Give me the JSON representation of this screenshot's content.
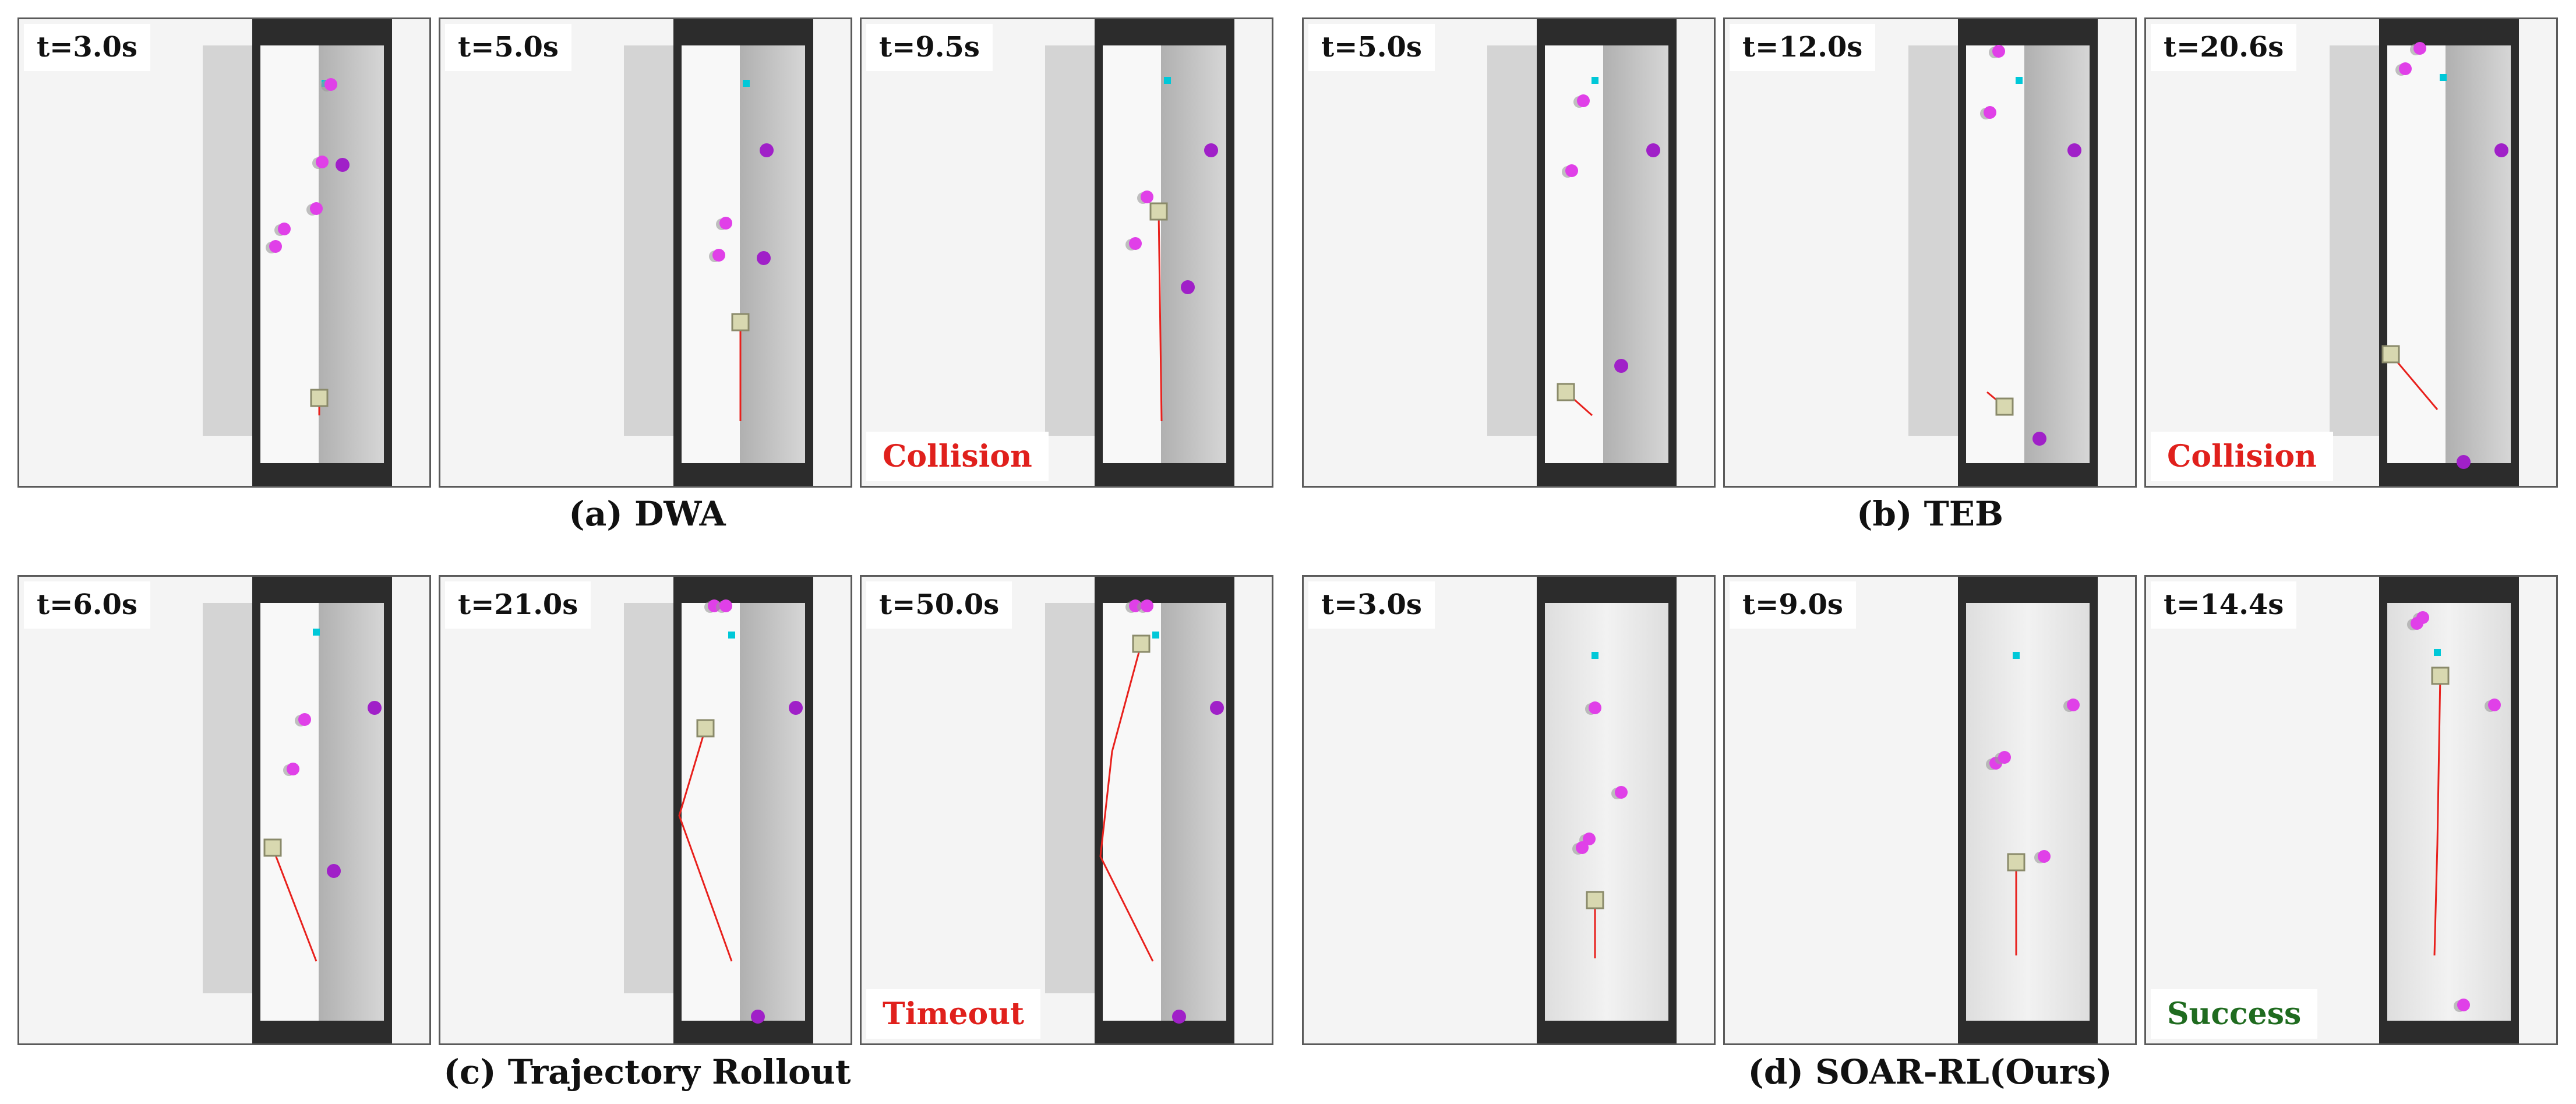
{
  "groups": [
    {
      "caption": "(a) DWA",
      "panels": [
        {
          "time": "t=3.0s",
          "status": "",
          "status_color": ""
        },
        {
          "time": "t=5.0s",
          "status": "",
          "status_color": ""
        },
        {
          "time": "t=9.5s",
          "status": "Collision",
          "status_color": "#e0201c"
        }
      ]
    },
    {
      "caption": "(b) TEB",
      "panels": [
        {
          "time": "t=5.0s",
          "status": "",
          "status_color": ""
        },
        {
          "time": "t=12.0s",
          "status": "",
          "status_color": ""
        },
        {
          "time": "t=20.6s",
          "status": "Collision",
          "status_color": "#e0201c"
        }
      ]
    },
    {
      "caption": "(c) Trajectory Rollout",
      "panels": [
        {
          "time": "t=6.0s",
          "status": "",
          "status_color": ""
        },
        {
          "time": "t=21.0s",
          "status": "",
          "status_color": ""
        },
        {
          "time": "t=50.0s",
          "status": "Timeout",
          "status_color": "#e0201c"
        }
      ]
    },
    {
      "caption": "(d) SOAR-RL(Ours)",
      "panels": [
        {
          "time": "t=3.0s",
          "status": "",
          "status_color": ""
        },
        {
          "time": "t=9.0s",
          "status": "",
          "status_color": ""
        },
        {
          "time": "t=14.4s",
          "status": "Success",
          "status_color": "#1f6b1f"
        }
      ]
    }
  ],
  "colors": {
    "trajectory": "#e8201c",
    "pedestrian": "#e040e8",
    "pedestrian_dark": "#a020c8",
    "goal": "#00c8d8",
    "robot": "#d8d8b0",
    "wall": "#2c2c2c"
  }
}
